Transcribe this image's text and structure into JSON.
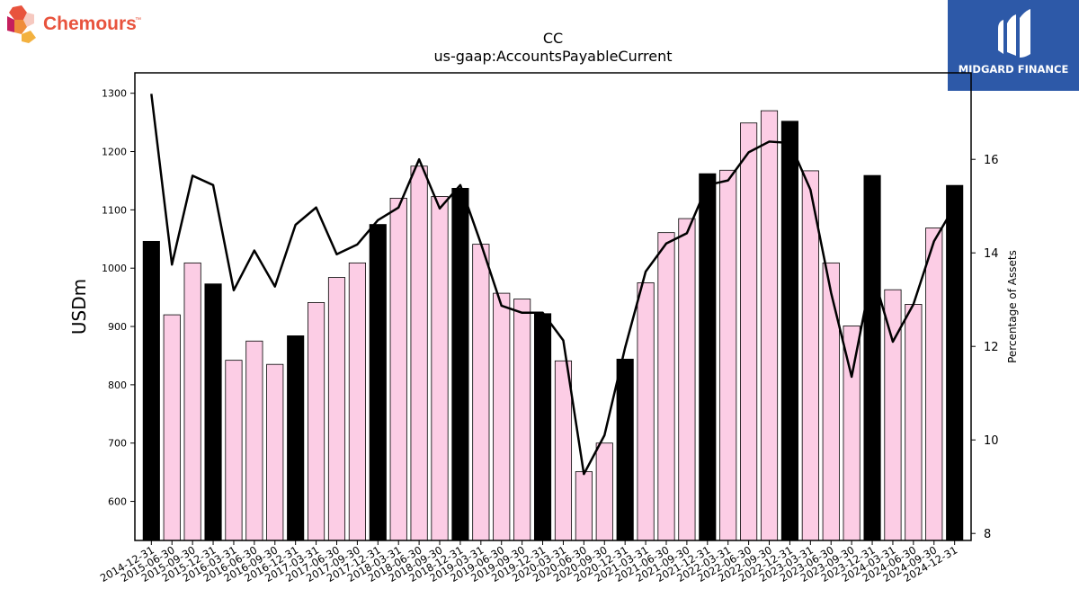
{
  "branding": {
    "left_logo_text": "Chemours",
    "left_logo_tm": "™",
    "left_logo_color": "#e8533d",
    "right_logo_text": "MIDGARD FINANCE",
    "right_logo_bg": "#2d59a8"
  },
  "chart_data": {
    "type": "bar",
    "title": "CC",
    "subtitle": "us-gaap:AccountsPayableCurrent",
    "ylabel": "USDm",
    "y2label": "Percentage of Assets",
    "ylim": [
      533,
      1335
    ],
    "y2lim": [
      7.85,
      17.85
    ],
    "yticks": [
      600,
      700,
      800,
      900,
      1000,
      1100,
      1200,
      1300
    ],
    "y2ticks": [
      8,
      10,
      12,
      14,
      16
    ],
    "categories": [
      "2014-12-31",
      "2015-06-30",
      "2015-09-30",
      "2015-12-31",
      "2016-03-31",
      "2016-06-30",
      "2016-09-30",
      "2016-12-31",
      "2017-03-31",
      "2017-06-30",
      "2017-09-30",
      "2017-12-31",
      "2018-03-31",
      "2018-06-30",
      "2018-09-30",
      "2018-12-31",
      "2019-03-31",
      "2019-06-30",
      "2019-09-30",
      "2019-12-31",
      "2020-03-31",
      "2020-06-30",
      "2020-09-30",
      "2020-12-31",
      "2021-03-31",
      "2021-06-30",
      "2021-09-30",
      "2021-12-31",
      "2022-03-31",
      "2022-06-30",
      "2022-09-30",
      "2022-12-31",
      "2023-03-31",
      "2023-06-30",
      "2023-09-30",
      "2023-12-31",
      "2024-03-31",
      "2024-06-30",
      "2024-09-30",
      "2024-12-31"
    ],
    "series": [
      {
        "kind": "bar",
        "values": [
          1046,
          920,
          1009,
          973,
          842,
          875,
          835,
          884,
          941,
          984,
          1009,
          1075,
          1120,
          1175,
          1123,
          1137,
          1041,
          957,
          947,
          922,
          841,
          651,
          700,
          844,
          975,
          1061,
          1085,
          1162,
          1168,
          1249,
          1270,
          1252,
          1167,
          1009,
          901,
          1159,
          963,
          938,
          1069,
          1142
        ],
        "annual_color": "#000000",
        "quarter_color": "#fccde5"
      },
      {
        "kind": "line",
        "axis": "right",
        "color": "#000000",
        "values": [
          17.4,
          13.75,
          15.65,
          15.45,
          13.2,
          14.05,
          13.28,
          14.6,
          14.97,
          13.97,
          14.18,
          14.7,
          14.97,
          16.0,
          14.95,
          15.45,
          14.2,
          12.87,
          12.72,
          12.72,
          12.13,
          9.27,
          10.1,
          11.97,
          13.6,
          14.2,
          14.42,
          15.45,
          15.55,
          16.15,
          16.38,
          16.35,
          15.35,
          13.15,
          11.35,
          13.6,
          12.1,
          12.9,
          14.25,
          15.0
        ]
      }
    ]
  }
}
